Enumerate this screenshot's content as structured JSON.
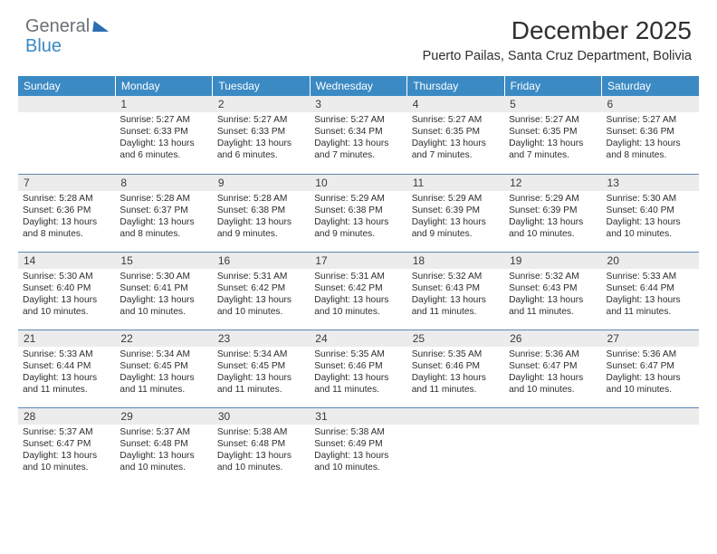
{
  "logo": {
    "text1": "General",
    "text2": "Blue"
  },
  "title": "December 2025",
  "location": "Puerto Pailas, Santa Cruz Department, Bolivia",
  "colors": {
    "header_bg": "#3b8ac4",
    "daynum_bg": "#ececec",
    "border": "#5b88b3",
    "text": "#2d2d2d"
  },
  "weekdays": [
    "Sunday",
    "Monday",
    "Tuesday",
    "Wednesday",
    "Thursday",
    "Friday",
    "Saturday"
  ],
  "weeks": [
    [
      null,
      {
        "n": "1",
        "sr": "5:27 AM",
        "ss": "6:33 PM",
        "dl": "13 hours and 6 minutes."
      },
      {
        "n": "2",
        "sr": "5:27 AM",
        "ss": "6:33 PM",
        "dl": "13 hours and 6 minutes."
      },
      {
        "n": "3",
        "sr": "5:27 AM",
        "ss": "6:34 PM",
        "dl": "13 hours and 7 minutes."
      },
      {
        "n": "4",
        "sr": "5:27 AM",
        "ss": "6:35 PM",
        "dl": "13 hours and 7 minutes."
      },
      {
        "n": "5",
        "sr": "5:27 AM",
        "ss": "6:35 PM",
        "dl": "13 hours and 7 minutes."
      },
      {
        "n": "6",
        "sr": "5:27 AM",
        "ss": "6:36 PM",
        "dl": "13 hours and 8 minutes."
      }
    ],
    [
      {
        "n": "7",
        "sr": "5:28 AM",
        "ss": "6:36 PM",
        "dl": "13 hours and 8 minutes."
      },
      {
        "n": "8",
        "sr": "5:28 AM",
        "ss": "6:37 PM",
        "dl": "13 hours and 8 minutes."
      },
      {
        "n": "9",
        "sr": "5:28 AM",
        "ss": "6:38 PM",
        "dl": "13 hours and 9 minutes."
      },
      {
        "n": "10",
        "sr": "5:29 AM",
        "ss": "6:38 PM",
        "dl": "13 hours and 9 minutes."
      },
      {
        "n": "11",
        "sr": "5:29 AM",
        "ss": "6:39 PM",
        "dl": "13 hours and 9 minutes."
      },
      {
        "n": "12",
        "sr": "5:29 AM",
        "ss": "6:39 PM",
        "dl": "13 hours and 10 minutes."
      },
      {
        "n": "13",
        "sr": "5:30 AM",
        "ss": "6:40 PM",
        "dl": "13 hours and 10 minutes."
      }
    ],
    [
      {
        "n": "14",
        "sr": "5:30 AM",
        "ss": "6:40 PM",
        "dl": "13 hours and 10 minutes."
      },
      {
        "n": "15",
        "sr": "5:30 AM",
        "ss": "6:41 PM",
        "dl": "13 hours and 10 minutes."
      },
      {
        "n": "16",
        "sr": "5:31 AM",
        "ss": "6:42 PM",
        "dl": "13 hours and 10 minutes."
      },
      {
        "n": "17",
        "sr": "5:31 AM",
        "ss": "6:42 PM",
        "dl": "13 hours and 10 minutes."
      },
      {
        "n": "18",
        "sr": "5:32 AM",
        "ss": "6:43 PM",
        "dl": "13 hours and 11 minutes."
      },
      {
        "n": "19",
        "sr": "5:32 AM",
        "ss": "6:43 PM",
        "dl": "13 hours and 11 minutes."
      },
      {
        "n": "20",
        "sr": "5:33 AM",
        "ss": "6:44 PM",
        "dl": "13 hours and 11 minutes."
      }
    ],
    [
      {
        "n": "21",
        "sr": "5:33 AM",
        "ss": "6:44 PM",
        "dl": "13 hours and 11 minutes."
      },
      {
        "n": "22",
        "sr": "5:34 AM",
        "ss": "6:45 PM",
        "dl": "13 hours and 11 minutes."
      },
      {
        "n": "23",
        "sr": "5:34 AM",
        "ss": "6:45 PM",
        "dl": "13 hours and 11 minutes."
      },
      {
        "n": "24",
        "sr": "5:35 AM",
        "ss": "6:46 PM",
        "dl": "13 hours and 11 minutes."
      },
      {
        "n": "25",
        "sr": "5:35 AM",
        "ss": "6:46 PM",
        "dl": "13 hours and 11 minutes."
      },
      {
        "n": "26",
        "sr": "5:36 AM",
        "ss": "6:47 PM",
        "dl": "13 hours and 10 minutes."
      },
      {
        "n": "27",
        "sr": "5:36 AM",
        "ss": "6:47 PM",
        "dl": "13 hours and 10 minutes."
      }
    ],
    [
      {
        "n": "28",
        "sr": "5:37 AM",
        "ss": "6:47 PM",
        "dl": "13 hours and 10 minutes."
      },
      {
        "n": "29",
        "sr": "5:37 AM",
        "ss": "6:48 PM",
        "dl": "13 hours and 10 minutes."
      },
      {
        "n": "30",
        "sr": "5:38 AM",
        "ss": "6:48 PM",
        "dl": "13 hours and 10 minutes."
      },
      {
        "n": "31",
        "sr": "5:38 AM",
        "ss": "6:49 PM",
        "dl": "13 hours and 10 minutes."
      },
      null,
      null,
      null
    ]
  ],
  "labels": {
    "sunrise": "Sunrise:",
    "sunset": "Sunset:",
    "daylight": "Daylight:"
  }
}
